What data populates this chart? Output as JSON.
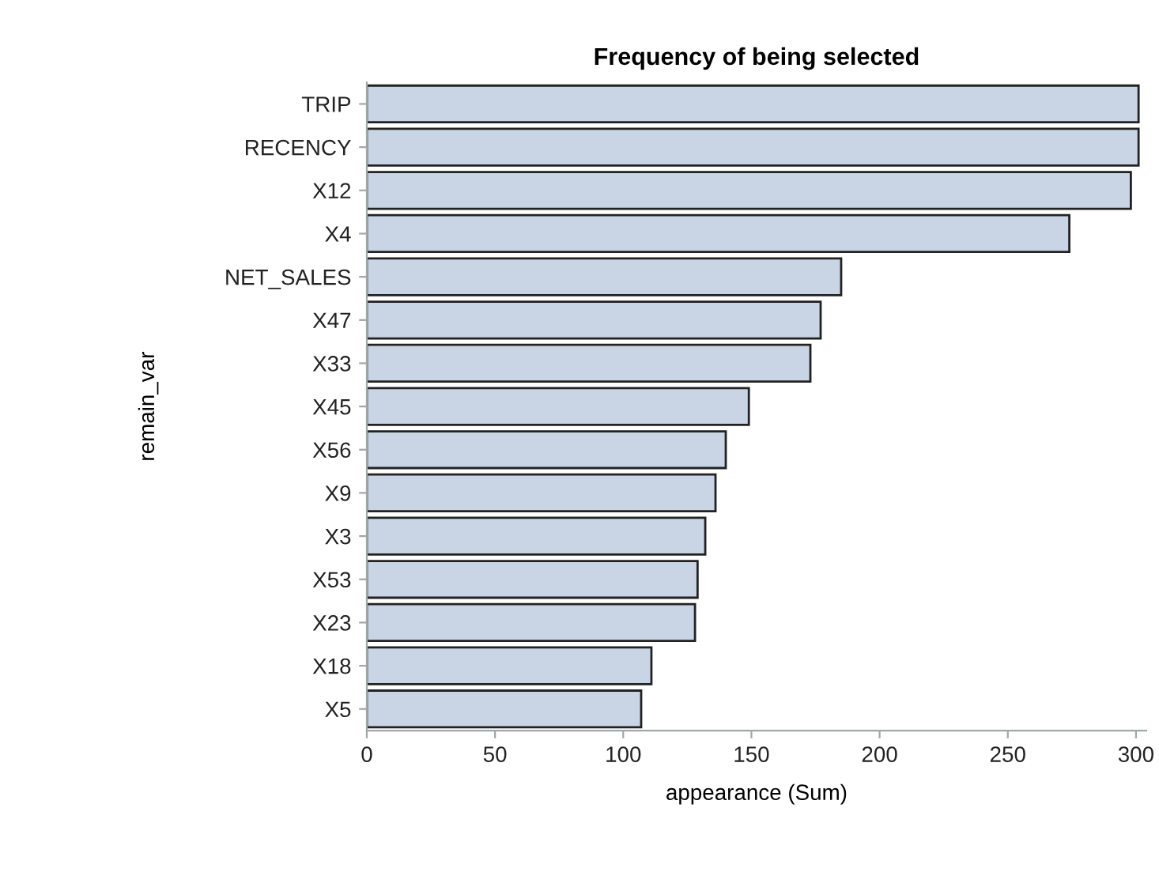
{
  "chart_data": {
    "type": "bar",
    "orientation": "horizontal",
    "title": "Frequency of being selected",
    "xlabel": "appearance (Sum)",
    "ylabel": "remain_var",
    "categories": [
      "TRIP",
      "RECENCY",
      "X12",
      "X4",
      "NET_SALES",
      "X47",
      "X33",
      "X45",
      "X56",
      "X9",
      "X3",
      "X53",
      "X23",
      "X18",
      "X5"
    ],
    "values": [
      301,
      301,
      298,
      274,
      185,
      177,
      173,
      149,
      140,
      136,
      132,
      129,
      128,
      111,
      107
    ],
    "color": "#c9d5e5",
    "xlim": [
      0,
      304
    ],
    "xticks": [
      0,
      50,
      100,
      150,
      200,
      250,
      300
    ],
    "grid": false
  }
}
